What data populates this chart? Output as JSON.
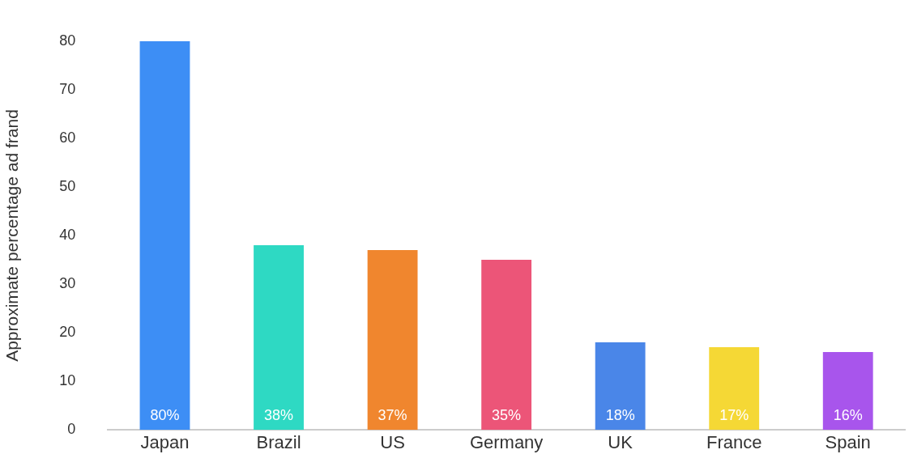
{
  "chart_data": {
    "type": "bar",
    "ylabel": "Approximate percentage ad frand",
    "categories": [
      "Japan",
      "Brazil",
      "US",
      "Germany",
      "UK",
      "France",
      "Spain"
    ],
    "values": [
      80,
      38,
      37,
      35,
      18,
      17,
      16
    ],
    "colors": [
      "#3d8ef5",
      "#2ed9c3",
      "#f0862e",
      "#ec5578",
      "#4a86e8",
      "#f5d835",
      "#a855ec"
    ],
    "value_labels": [
      "80%",
      "38%",
      "37%",
      "35%",
      "18%",
      "17%",
      "16%"
    ],
    "ylim": [
      0,
      80
    ],
    "yticks": [
      0,
      10,
      20,
      30,
      40,
      50,
      60,
      70,
      80
    ],
    "grid": false,
    "legend": false
  }
}
